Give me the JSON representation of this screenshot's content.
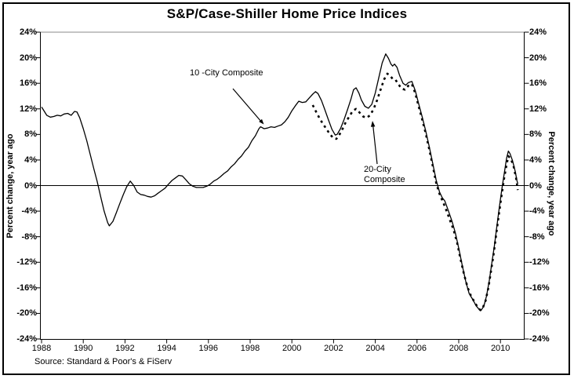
{
  "title": "S&P/Case-Shiller Home Price Indices",
  "source_note": "Source: Standard & Poor's & FiServ",
  "axes": {
    "left_title": "Percent change, year ago",
    "right_title": "Percent change, year ago"
  },
  "annotations": {
    "ten_city": "10 -City Composite",
    "twenty_city": "20-City\nComposite"
  },
  "chart_data": {
    "type": "line",
    "title": "S&P/Case-Shiller Home Price Indices",
    "xlabel": "",
    "ylabel": "Percent change, year ago",
    "ylim": [
      -24,
      24
    ],
    "xlim": [
      1988,
      2011.2
    ],
    "grid": "zero-line-only",
    "legend_position": "inline-annotations",
    "source": "Source: Standard & Poor's & FiServ",
    "y_ticks": [
      {
        "v": 24,
        "label": "24%"
      },
      {
        "v": 20,
        "label": "20%"
      },
      {
        "v": 16,
        "label": "16%"
      },
      {
        "v": 12,
        "label": "12%"
      },
      {
        "v": 8,
        "label": "8%"
      },
      {
        "v": 4,
        "label": "4%"
      },
      {
        "v": 0,
        "label": "0%"
      },
      {
        "v": -4,
        "label": "-4%"
      },
      {
        "v": -8,
        "label": "-8%"
      },
      {
        "v": -12,
        "label": "-12%"
      },
      {
        "v": -16,
        "label": "-16%"
      },
      {
        "v": -20,
        "label": "-20%"
      },
      {
        "v": -24,
        "label": "-24%"
      }
    ],
    "x_ticks": [
      {
        "v": 1988,
        "label": "1988"
      },
      {
        "v": 1990,
        "label": "1990"
      },
      {
        "v": 1992,
        "label": "1992"
      },
      {
        "v": 1994,
        "label": "1994"
      },
      {
        "v": 1996,
        "label": "1996"
      },
      {
        "v": 1998,
        "label": "1998"
      },
      {
        "v": 2000,
        "label": "2000"
      },
      {
        "v": 2002,
        "label": "2002"
      },
      {
        "v": 2004,
        "label": "2004"
      },
      {
        "v": 2006,
        "label": "2006"
      },
      {
        "v": 2008,
        "label": "2008"
      },
      {
        "v": 2010,
        "label": "2010"
      }
    ],
    "series": [
      {
        "name": "10-City Composite",
        "style": "solid",
        "points": [
          [
            1988.0,
            12.3
          ],
          [
            1988.08,
            11.9
          ],
          [
            1988.25,
            11.0
          ],
          [
            1988.42,
            10.7
          ],
          [
            1988.58,
            10.8
          ],
          [
            1988.75,
            11.0
          ],
          [
            1988.92,
            10.9
          ],
          [
            1989.08,
            11.2
          ],
          [
            1989.25,
            11.3
          ],
          [
            1989.42,
            11.0
          ],
          [
            1989.58,
            11.6
          ],
          [
            1989.7,
            11.5
          ],
          [
            1989.83,
            10.6
          ],
          [
            1990.0,
            8.9
          ],
          [
            1990.17,
            7.0
          ],
          [
            1990.33,
            4.9
          ],
          [
            1990.5,
            2.7
          ],
          [
            1990.67,
            0.6
          ],
          [
            1990.83,
            -1.7
          ],
          [
            1991.0,
            -4.0
          ],
          [
            1991.17,
            -5.8
          ],
          [
            1991.25,
            -6.3
          ],
          [
            1991.42,
            -5.6
          ],
          [
            1991.58,
            -4.3
          ],
          [
            1991.75,
            -2.8
          ],
          [
            1991.92,
            -1.4
          ],
          [
            1992.08,
            -0.2
          ],
          [
            1992.25,
            0.7
          ],
          [
            1992.42,
            0.0
          ],
          [
            1992.58,
            -1.0
          ],
          [
            1992.75,
            -1.4
          ],
          [
            1992.92,
            -1.5
          ],
          [
            1993.08,
            -1.7
          ],
          [
            1993.25,
            -1.8
          ],
          [
            1993.42,
            -1.6
          ],
          [
            1993.58,
            -1.2
          ],
          [
            1993.75,
            -0.8
          ],
          [
            1993.92,
            -0.4
          ],
          [
            1994.08,
            0.2
          ],
          [
            1994.25,
            0.8
          ],
          [
            1994.42,
            1.2
          ],
          [
            1994.58,
            1.6
          ],
          [
            1994.75,
            1.5
          ],
          [
            1994.92,
            0.9
          ],
          [
            1995.08,
            0.3
          ],
          [
            1995.25,
            -0.1
          ],
          [
            1995.42,
            -0.3
          ],
          [
            1995.58,
            -0.3
          ],
          [
            1995.75,
            -0.3
          ],
          [
            1995.92,
            -0.1
          ],
          [
            1996.08,
            0.2
          ],
          [
            1996.25,
            0.7
          ],
          [
            1996.42,
            1.0
          ],
          [
            1996.58,
            1.4
          ],
          [
            1996.75,
            1.9
          ],
          [
            1996.92,
            2.3
          ],
          [
            1997.08,
            2.9
          ],
          [
            1997.25,
            3.4
          ],
          [
            1997.42,
            4.1
          ],
          [
            1997.58,
            4.6
          ],
          [
            1997.75,
            5.4
          ],
          [
            1997.92,
            6.0
          ],
          [
            1998.08,
            7.0
          ],
          [
            1998.25,
            7.8
          ],
          [
            1998.42,
            8.9
          ],
          [
            1998.5,
            9.2
          ],
          [
            1998.67,
            8.9
          ],
          [
            1998.83,
            9.0
          ],
          [
            1999.0,
            9.2
          ],
          [
            1999.17,
            9.1
          ],
          [
            1999.33,
            9.3
          ],
          [
            1999.5,
            9.5
          ],
          [
            1999.67,
            10.0
          ],
          [
            1999.83,
            10.7
          ],
          [
            2000.0,
            11.7
          ],
          [
            2000.17,
            12.5
          ],
          [
            2000.33,
            13.2
          ],
          [
            2000.5,
            13.0
          ],
          [
            2000.67,
            13.1
          ],
          [
            2000.83,
            13.7
          ],
          [
            2001.0,
            14.3
          ],
          [
            2001.13,
            14.7
          ],
          [
            2001.25,
            14.4
          ],
          [
            2001.42,
            13.3
          ],
          [
            2001.58,
            11.9
          ],
          [
            2001.75,
            10.3
          ],
          [
            2001.92,
            8.8
          ],
          [
            2002.08,
            7.9
          ],
          [
            2002.17,
            8.0
          ],
          [
            2002.33,
            8.9
          ],
          [
            2002.5,
            10.3
          ],
          [
            2002.67,
            11.9
          ],
          [
            2002.83,
            13.5
          ],
          [
            2002.96,
            15.0
          ],
          [
            2003.08,
            15.3
          ],
          [
            2003.21,
            14.5
          ],
          [
            2003.33,
            13.4
          ],
          [
            2003.5,
            12.4
          ],
          [
            2003.67,
            12.1
          ],
          [
            2003.83,
            12.7
          ],
          [
            2004.0,
            14.5
          ],
          [
            2004.17,
            16.9
          ],
          [
            2004.33,
            19.2
          ],
          [
            2004.5,
            20.6
          ],
          [
            2004.63,
            19.9
          ],
          [
            2004.75,
            19.0
          ],
          [
            2004.83,
            18.7
          ],
          [
            2004.92,
            19.0
          ],
          [
            2005.04,
            18.5
          ],
          [
            2005.17,
            17.2
          ],
          [
            2005.33,
            16.0
          ],
          [
            2005.46,
            15.7
          ],
          [
            2005.58,
            16.1
          ],
          [
            2005.75,
            16.3
          ],
          [
            2005.92,
            14.8
          ],
          [
            2006.08,
            12.8
          ],
          [
            2006.25,
            10.7
          ],
          [
            2006.42,
            8.5
          ],
          [
            2006.58,
            6.2
          ],
          [
            2006.75,
            3.5
          ],
          [
            2006.92,
            0.8
          ],
          [
            2007.08,
            -1.0
          ],
          [
            2007.21,
            -1.9
          ],
          [
            2007.33,
            -2.4
          ],
          [
            2007.5,
            -3.9
          ],
          [
            2007.67,
            -5.5
          ],
          [
            2007.83,
            -7.3
          ],
          [
            2008.0,
            -9.8
          ],
          [
            2008.17,
            -12.5
          ],
          [
            2008.33,
            -14.9
          ],
          [
            2008.5,
            -16.9
          ],
          [
            2008.67,
            -17.8
          ],
          [
            2008.83,
            -18.8
          ],
          [
            2008.96,
            -19.3
          ],
          [
            2009.08,
            -19.5
          ],
          [
            2009.21,
            -18.8
          ],
          [
            2009.33,
            -17.3
          ],
          [
            2009.46,
            -15.0
          ],
          [
            2009.58,
            -12.3
          ],
          [
            2009.71,
            -9.4
          ],
          [
            2009.83,
            -6.3
          ],
          [
            2009.96,
            -3.1
          ],
          [
            2010.08,
            -0.3
          ],
          [
            2010.21,
            2.5
          ],
          [
            2010.29,
            4.2
          ],
          [
            2010.38,
            5.4
          ],
          [
            2010.46,
            5.0
          ],
          [
            2010.58,
            3.9
          ],
          [
            2010.71,
            2.2
          ],
          [
            2010.79,
            0.8
          ],
          [
            2010.83,
            0.3
          ]
        ]
      },
      {
        "name": "20-City Composite",
        "style": "dashed",
        "points": [
          [
            2001.0,
            12.6
          ],
          [
            2001.17,
            11.5
          ],
          [
            2001.33,
            10.5
          ],
          [
            2001.5,
            9.6
          ],
          [
            2001.67,
            8.8
          ],
          [
            2001.83,
            8.0
          ],
          [
            2002.0,
            7.4
          ],
          [
            2002.13,
            7.3
          ],
          [
            2002.25,
            7.8
          ],
          [
            2002.42,
            8.8
          ],
          [
            2002.58,
            9.9
          ],
          [
            2002.75,
            10.8
          ],
          [
            2002.92,
            11.7
          ],
          [
            2003.08,
            12.0
          ],
          [
            2003.25,
            11.4
          ],
          [
            2003.42,
            10.8
          ],
          [
            2003.58,
            10.6
          ],
          [
            2003.75,
            11.0
          ],
          [
            2003.92,
            12.0
          ],
          [
            2004.08,
            13.3
          ],
          [
            2004.25,
            15.0
          ],
          [
            2004.42,
            16.6
          ],
          [
            2004.58,
            17.5
          ],
          [
            2004.71,
            17.2
          ],
          [
            2004.83,
            16.7
          ],
          [
            2004.96,
            16.6
          ],
          [
            2005.08,
            16.0
          ],
          [
            2005.25,
            15.2
          ],
          [
            2005.42,
            15.0
          ],
          [
            2005.58,
            15.6
          ],
          [
            2005.75,
            15.9
          ],
          [
            2005.92,
            14.4
          ],
          [
            2006.08,
            12.4
          ],
          [
            2006.25,
            10.3
          ],
          [
            2006.42,
            8.1
          ],
          [
            2006.58,
            5.8
          ],
          [
            2006.75,
            3.1
          ],
          [
            2006.92,
            0.4
          ],
          [
            2007.08,
            -1.3
          ],
          [
            2007.25,
            -2.6
          ],
          [
            2007.42,
            -4.0
          ],
          [
            2007.58,
            -5.4
          ],
          [
            2007.75,
            -6.9
          ],
          [
            2007.92,
            -8.9
          ],
          [
            2008.08,
            -11.4
          ],
          [
            2008.25,
            -13.8
          ],
          [
            2008.42,
            -15.9
          ],
          [
            2008.58,
            -17.2
          ],
          [
            2008.75,
            -18.2
          ],
          [
            2008.92,
            -19.1
          ],
          [
            2009.04,
            -19.5
          ],
          [
            2009.17,
            -19.0
          ],
          [
            2009.29,
            -18.0
          ],
          [
            2009.42,
            -16.0
          ],
          [
            2009.54,
            -13.5
          ],
          [
            2009.67,
            -10.8
          ],
          [
            2009.79,
            -7.8
          ],
          [
            2009.92,
            -4.6
          ],
          [
            2010.04,
            -1.8
          ],
          [
            2010.17,
            1.0
          ],
          [
            2010.29,
            3.2
          ],
          [
            2010.38,
            4.6
          ],
          [
            2010.5,
            4.2
          ],
          [
            2010.63,
            3.0
          ],
          [
            2010.75,
            1.2
          ],
          [
            2010.83,
            -0.7
          ]
        ]
      }
    ]
  }
}
